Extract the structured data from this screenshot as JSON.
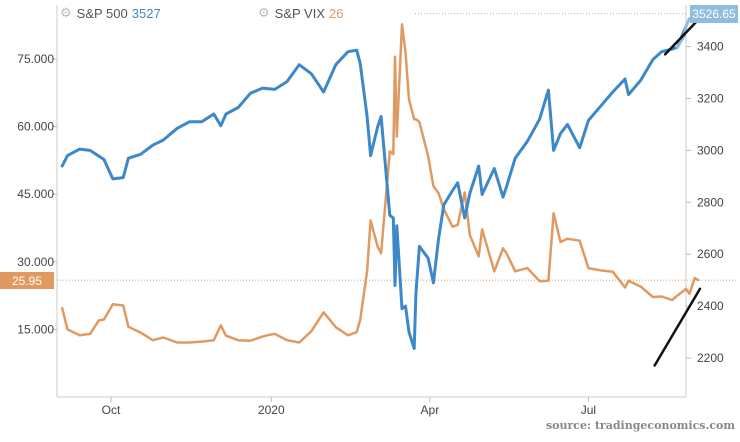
{
  "legend": {
    "spx_name": "S&P 500",
    "spx_value": "3527",
    "vix_name": "S&P VIX",
    "vix_value": "26"
  },
  "badges": {
    "spx_last": "3526.65",
    "vix_last": "25.95"
  },
  "source": "source: tradingeconomics.com",
  "colors": {
    "spx": "#3d88c8",
    "spx_recent": "#8fbde0",
    "vix": "#e09a61",
    "annotation": "#111111",
    "grid": "#e6e6e6"
  },
  "chart_data": {
    "type": "line",
    "x_labels": [
      "Oct",
      "2020",
      "Apr",
      "Jul"
    ],
    "x_label_dates": [
      "2019-10-01",
      "2020-01-01",
      "2020-04-01",
      "2020-07-01"
    ],
    "x_range": [
      "2019-08-31",
      "2020-08-26"
    ],
    "y_left": {
      "ticks": [
        15,
        30,
        45,
        60,
        75
      ],
      "tick_labels": [
        "15.000",
        "30.000",
        "45.000",
        "60.000",
        "75.000"
      ],
      "range": [
        0,
        87
      ]
    },
    "y_right": {
      "ticks": [
        2200,
        2400,
        2600,
        2800,
        3000,
        3200,
        3400
      ],
      "range": [
        2050,
        3560
      ]
    },
    "grid": false,
    "series": [
      {
        "name": "S&P 500",
        "axis": "right",
        "points": [
          [
            "2019-09-03",
            2940
          ],
          [
            "2019-09-06",
            2980
          ],
          [
            "2019-09-13",
            3005
          ],
          [
            "2019-09-19",
            3000
          ],
          [
            "2019-09-27",
            2965
          ],
          [
            "2019-10-02",
            2890
          ],
          [
            "2019-10-08",
            2895
          ],
          [
            "2019-10-11",
            2970
          ],
          [
            "2019-10-18",
            2985
          ],
          [
            "2019-10-25",
            3020
          ],
          [
            "2019-10-31",
            3040
          ],
          [
            "2019-11-08",
            3085
          ],
          [
            "2019-11-15",
            3110
          ],
          [
            "2019-11-22",
            3110
          ],
          [
            "2019-11-29",
            3140
          ],
          [
            "2019-12-03",
            3095
          ],
          [
            "2019-12-06",
            3140
          ],
          [
            "2019-12-13",
            3165
          ],
          [
            "2019-12-20",
            3220
          ],
          [
            "2019-12-27",
            3240
          ],
          [
            "2020-01-03",
            3235
          ],
          [
            "2020-01-10",
            3265
          ],
          [
            "2020-01-17",
            3330
          ],
          [
            "2020-01-24",
            3295
          ],
          [
            "2020-01-31",
            3225
          ],
          [
            "2020-02-07",
            3330
          ],
          [
            "2020-02-14",
            3380
          ],
          [
            "2020-02-19",
            3386
          ],
          [
            "2020-02-21",
            3335
          ],
          [
            "2020-02-25",
            3130
          ],
          [
            "2020-02-27",
            2980
          ],
          [
            "2020-03-02",
            3090
          ],
          [
            "2020-03-04",
            3130
          ],
          [
            "2020-03-09",
            2750
          ],
          [
            "2020-03-11",
            2740
          ],
          [
            "2020-03-12",
            2480
          ],
          [
            "2020-03-13",
            2710
          ],
          [
            "2020-03-16",
            2390
          ],
          [
            "2020-03-18",
            2400
          ],
          [
            "2020-03-20",
            2300
          ],
          [
            "2020-03-23",
            2237
          ],
          [
            "2020-03-24",
            2447
          ],
          [
            "2020-03-26",
            2630
          ],
          [
            "2020-03-31",
            2585
          ],
          [
            "2020-04-03",
            2490
          ],
          [
            "2020-04-06",
            2660
          ],
          [
            "2020-04-09",
            2790
          ],
          [
            "2020-04-14",
            2845
          ],
          [
            "2020-04-17",
            2875
          ],
          [
            "2020-04-21",
            2740
          ],
          [
            "2020-04-24",
            2835
          ],
          [
            "2020-04-29",
            2940
          ],
          [
            "2020-05-01",
            2830
          ],
          [
            "2020-05-08",
            2930
          ],
          [
            "2020-05-13",
            2820
          ],
          [
            "2020-05-15",
            2860
          ],
          [
            "2020-05-20",
            2970
          ],
          [
            "2020-05-27",
            3035
          ],
          [
            "2020-06-03",
            3120
          ],
          [
            "2020-06-08",
            3232
          ],
          [
            "2020-06-11",
            3000
          ],
          [
            "2020-06-15",
            3065
          ],
          [
            "2020-06-19",
            3100
          ],
          [
            "2020-06-26",
            3010
          ],
          [
            "2020-07-01",
            3115
          ],
          [
            "2020-07-08",
            3170
          ],
          [
            "2020-07-15",
            3225
          ],
          [
            "2020-07-22",
            3275
          ],
          [
            "2020-07-24",
            3215
          ],
          [
            "2020-07-31",
            3270
          ],
          [
            "2020-08-07",
            3350
          ],
          [
            "2020-08-12",
            3380
          ],
          [
            "2020-08-18",
            3390
          ],
          [
            "2020-08-21",
            3397
          ],
          [
            "2020-08-26",
            3478
          ]
        ]
      },
      {
        "name": "S&P 500 recent",
        "axis": "right",
        "points": [
          [
            "2020-08-21",
            3397
          ],
          [
            "2020-08-24",
            3431
          ],
          [
            "2020-08-25",
            3443
          ],
          [
            "2020-08-26",
            3478
          ],
          [
            "2020-08-28",
            3508
          ],
          [
            "2020-08-31",
            3500
          ],
          [
            "2020-09-02",
            3527
          ]
        ]
      },
      {
        "name": "S&P VIX",
        "axis": "left",
        "points": [
          [
            "2019-09-03",
            19.7
          ],
          [
            "2019-09-06",
            15.0
          ],
          [
            "2019-09-13",
            13.7
          ],
          [
            "2019-09-19",
            14.0
          ],
          [
            "2019-09-24",
            17.0
          ],
          [
            "2019-09-27",
            17.2
          ],
          [
            "2019-10-02",
            20.6
          ],
          [
            "2019-10-08",
            20.3
          ],
          [
            "2019-10-11",
            15.6
          ],
          [
            "2019-10-18",
            14.3
          ],
          [
            "2019-10-25",
            12.6
          ],
          [
            "2019-10-31",
            13.2
          ],
          [
            "2019-11-08",
            12.1
          ],
          [
            "2019-11-15",
            12.1
          ],
          [
            "2019-11-22",
            12.3
          ],
          [
            "2019-11-29",
            12.6
          ],
          [
            "2019-12-03",
            15.9
          ],
          [
            "2019-12-06",
            13.6
          ],
          [
            "2019-12-13",
            12.6
          ],
          [
            "2019-12-20",
            12.5
          ],
          [
            "2019-12-27",
            13.4
          ],
          [
            "2019-12-31",
            13.8
          ],
          [
            "2020-01-03",
            14.0
          ],
          [
            "2020-01-10",
            12.6
          ],
          [
            "2020-01-17",
            12.1
          ],
          [
            "2020-01-24",
            14.6
          ],
          [
            "2020-01-31",
            18.8
          ],
          [
            "2020-02-07",
            15.5
          ],
          [
            "2020-02-14",
            13.7
          ],
          [
            "2020-02-19",
            14.4
          ],
          [
            "2020-02-21",
            17.1
          ],
          [
            "2020-02-25",
            27.9
          ],
          [
            "2020-02-27",
            39.2
          ],
          [
            "2020-03-02",
            33.4
          ],
          [
            "2020-03-04",
            31.9
          ],
          [
            "2020-03-09",
            54.5
          ],
          [
            "2020-03-11",
            53.9
          ],
          [
            "2020-03-12",
            75.5
          ],
          [
            "2020-03-13",
            57.8
          ],
          [
            "2020-03-16",
            82.7
          ],
          [
            "2020-03-18",
            76.5
          ],
          [
            "2020-03-20",
            66.0
          ],
          [
            "2020-03-23",
            61.6
          ],
          [
            "2020-03-24",
            61.7
          ],
          [
            "2020-03-26",
            61.0
          ],
          [
            "2020-03-31",
            53.5
          ],
          [
            "2020-04-03",
            46.8
          ],
          [
            "2020-04-06",
            45.2
          ],
          [
            "2020-04-09",
            41.7
          ],
          [
            "2020-04-14",
            37.8
          ],
          [
            "2020-04-17",
            38.2
          ],
          [
            "2020-04-21",
            45.4
          ],
          [
            "2020-04-24",
            35.9
          ],
          [
            "2020-04-29",
            31.2
          ],
          [
            "2020-05-01",
            37.2
          ],
          [
            "2020-05-08",
            27.9
          ],
          [
            "2020-05-13",
            33.0
          ],
          [
            "2020-05-15",
            31.9
          ],
          [
            "2020-05-20",
            27.9
          ],
          [
            "2020-05-27",
            28.6
          ],
          [
            "2020-06-03",
            25.7
          ],
          [
            "2020-06-08",
            25.8
          ],
          [
            "2020-06-11",
            40.8
          ],
          [
            "2020-06-15",
            34.4
          ],
          [
            "2020-06-19",
            35.1
          ],
          [
            "2020-06-26",
            34.7
          ],
          [
            "2020-07-01",
            28.6
          ],
          [
            "2020-07-08",
            28.1
          ],
          [
            "2020-07-15",
            27.8
          ],
          [
            "2020-07-22",
            24.3
          ],
          [
            "2020-07-24",
            25.8
          ],
          [
            "2020-07-31",
            24.5
          ],
          [
            "2020-08-07",
            22.2
          ],
          [
            "2020-08-12",
            22.3
          ],
          [
            "2020-08-18",
            21.5
          ],
          [
            "2020-08-21",
            22.5
          ],
          [
            "2020-08-26",
            24.0
          ],
          [
            "2020-08-28",
            22.9
          ],
          [
            "2020-08-31",
            26.4
          ],
          [
            "2020-09-02",
            25.95
          ]
        ]
      }
    ],
    "annotations": [
      {
        "type": "line",
        "from": [
          "2020-08-14",
          3370
        ],
        "to": [
          "2020-09-03",
          3510
        ],
        "axis": "right"
      },
      {
        "type": "line",
        "from": [
          "2020-08-08",
          7
        ],
        "to": [
          "2020-09-03",
          24
        ],
        "axis": "left"
      }
    ]
  }
}
